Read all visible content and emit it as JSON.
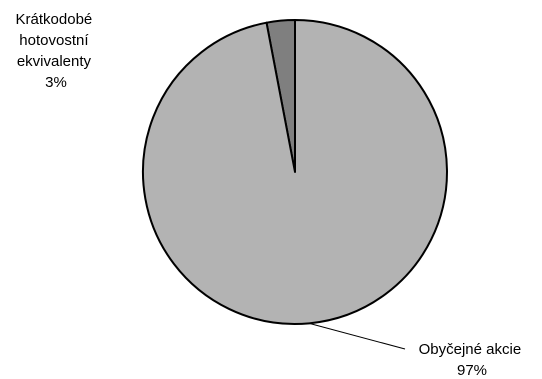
{
  "chart_data": {
    "type": "pie",
    "slices": [
      {
        "label_lines": [
          "Krátkodobé",
          "hotovostní",
          "ekvivalenty"
        ],
        "value": 3,
        "value_label": "3%",
        "color": "#7f7f7f"
      },
      {
        "label_lines": [
          "Obyčejné akcie"
        ],
        "value": 97,
        "value_label": "97%",
        "color": "#b3b3b3"
      }
    ],
    "start_angle": "12 o'clock",
    "direction": "counterclockwise",
    "edge_color": "#000000",
    "legend": "none"
  }
}
